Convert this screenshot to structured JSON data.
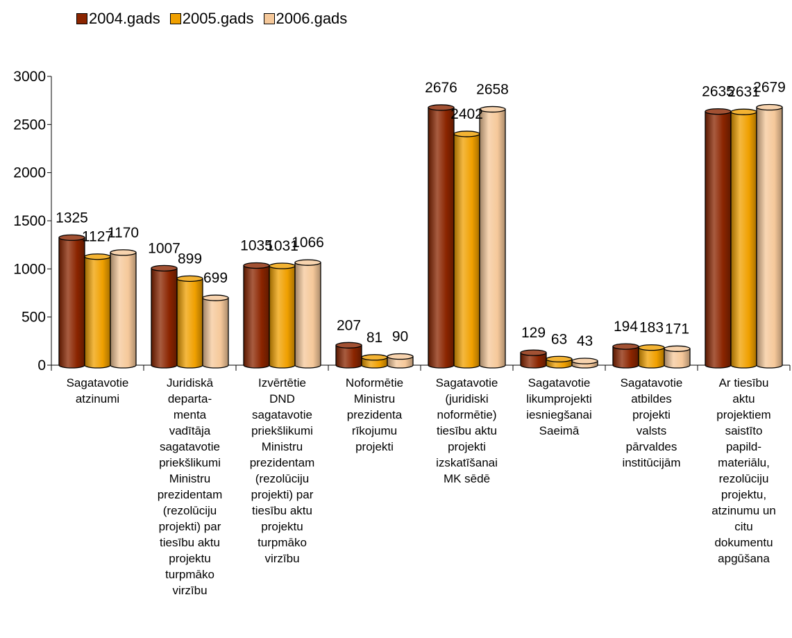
{
  "chart_data": {
    "type": "bar",
    "categories": [
      "Sagatavotie\natzinumi",
      "Juridiskā\ndeparta-\nmenta\nvadītāja\nsagatavotie\npriekšlikumi\nMinistru\nprezidentam\n(rezolūciju\nprojekti) par\ntiesību aktu\nprojektu\nturpmāko\nvirzību",
      "Izvērtētie\nDND\nsagatavotie\npriekšlikumi\nMinistru\nprezidentam\n(rezolūciju\nprojekti) par\ntiesību aktu\nprojektu\nturpmāko\nvirzību",
      "Noformētie\nMinistru\nprezidenta\nrīkojumu\nprojekti",
      "Sagatavotie\n(juridiski\nnoformētie)\ntiesību aktu\nprojekti\nizskatīšanai\nMK sēdē",
      "Sagatavotie\nlikumprojekti\niesniegšanai\nSaeimā",
      "Sagatavotie\natbildes\nprojekti\nvalsts\npārvaldes\ninstitūcijām",
      "Ar tiesību\naktu\nprojektiem\nsaistīto\npapild-\nmateriālu,\nrezolūciju\nprojektu,\natzinumu un\ncitu\ndokumentu\napgūšana"
    ],
    "series": [
      {
        "name": "2004.gads",
        "color": "#8b2500",
        "values": [
          1325,
          1007,
          1035,
          207,
          2676,
          129,
          194,
          2635
        ]
      },
      {
        "name": "2005.gads",
        "color": "#f0a000",
        "values": [
          1127,
          899,
          1031,
          81,
          2402,
          63,
          183,
          2631
        ]
      },
      {
        "name": "2006.gads",
        "color": "#f5c89a",
        "values": [
          1170,
          699,
          1066,
          90,
          2658,
          43,
          171,
          2679
        ]
      }
    ],
    "yticks": [
      0,
      500,
      1000,
      1500,
      2000,
      2500,
      3000
    ],
    "ylim": [
      0,
      3000
    ],
    "legend_position": "top-left",
    "grid": false
  }
}
